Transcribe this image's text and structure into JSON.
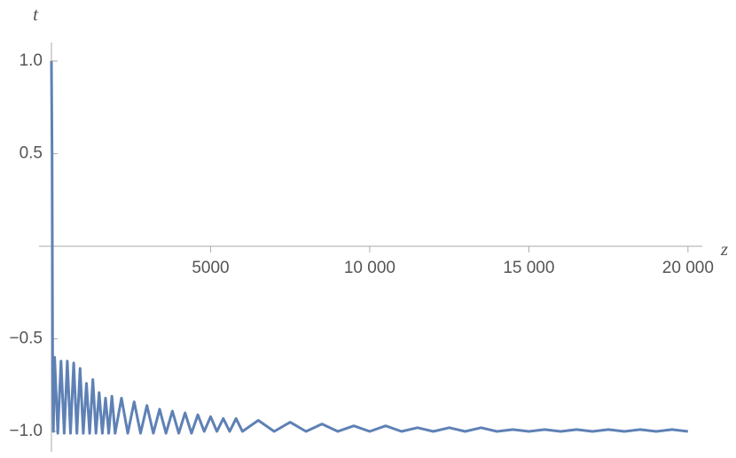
{
  "chart_data": {
    "type": "line",
    "x_label": "z",
    "y_label": "t",
    "x": [
      0,
      20,
      40,
      60,
      100,
      200,
      300,
      400,
      500,
      600,
      700,
      800,
      900,
      1000,
      1100,
      1200,
      1300,
      1400,
      1500,
      1600,
      1700,
      1800,
      1900,
      2000,
      2200,
      2400,
      2600,
      2800,
      3000,
      3200,
      3400,
      3600,
      3800,
      4000,
      4200,
      4400,
      4600,
      4800,
      5000,
      5200,
      5400,
      5600,
      5800,
      6000,
      6500,
      7000,
      7500,
      8000,
      8500,
      9000,
      9500,
      10000,
      10500,
      11000,
      11500,
      12000,
      12500,
      13000,
      13500,
      14000,
      14500,
      15000,
      15500,
      16000,
      16500,
      17000,
      17500,
      18000,
      18500,
      19000,
      19500,
      20000
    ],
    "series": [
      {
        "color": "#5e81b5",
        "values": [
          1.0,
          0.5,
          -0.7,
          -1.0,
          -0.6,
          -1.01,
          -0.62,
          -1.01,
          -0.62,
          -1.01,
          -0.63,
          -1.01,
          -0.66,
          -1.01,
          -0.74,
          -1.01,
          -0.72,
          -1.01,
          -0.79,
          -1.01,
          -0.82,
          -1.01,
          -0.81,
          -1.01,
          -0.82,
          -1.01,
          -0.84,
          -1.01,
          -0.86,
          -1.01,
          -0.88,
          -1.01,
          -0.89,
          -1.01,
          -0.9,
          -1.01,
          -0.91,
          -1.0,
          -0.92,
          -1.0,
          -0.93,
          -1.0,
          -0.93,
          -1.0,
          -0.94,
          -1.0,
          -0.95,
          -1.0,
          -0.96,
          -1.0,
          -0.97,
          -1.0,
          -0.97,
          -1.0,
          -0.98,
          -1.0,
          -0.98,
          -1.0,
          -0.98,
          -1.0,
          -0.99,
          -1.0,
          -0.99,
          -1.0,
          -0.99,
          -1.0,
          -0.99,
          -1.0,
          -0.99,
          -1.0,
          -0.99,
          -1.0
        ]
      }
    ],
    "xlim": [
      -390,
      20450
    ],
    "ylim": [
      -1.11,
      1.1
    ],
    "xticks": [
      5000,
      {
        "value": 10000,
        "label": "10 000"
      },
      {
        "value": 15000,
        "label": "15 000"
      },
      {
        "value": 20000,
        "label": "20 000"
      }
    ],
    "yticks": [
      {
        "value": -1,
        "label": "−1.0"
      },
      {
        "value": -0.5,
        "label": "−0.5"
      },
      0.5,
      {
        "value": 1,
        "label": "1.0"
      }
    ]
  }
}
